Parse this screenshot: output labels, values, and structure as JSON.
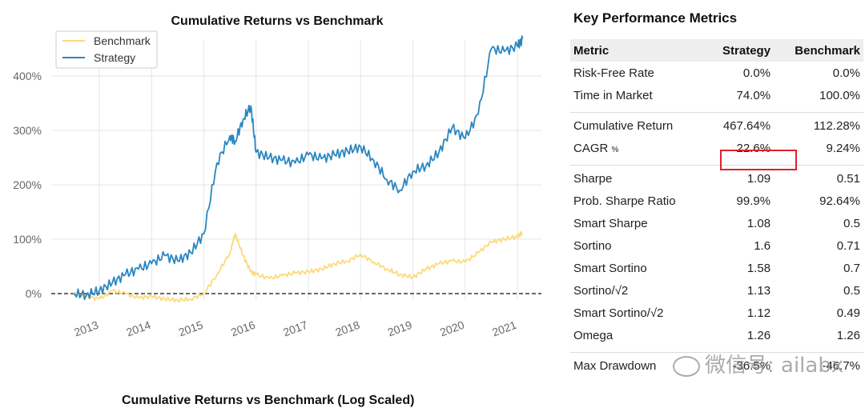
{
  "chart_data": {
    "type": "line",
    "title": "Cumulative Returns vs Benchmark",
    "x": [
      "2012.5",
      "2012.75",
      "2013.0",
      "2013.25",
      "2013.5",
      "2013.75",
      "2014.0",
      "2014.25",
      "2014.5",
      "2014.75",
      "2015.0",
      "2015.25",
      "2015.5",
      "2015.6",
      "2015.75",
      "2015.9",
      "2016.0",
      "2016.25",
      "2016.5",
      "2016.75",
      "2017.0",
      "2017.25",
      "2017.5",
      "2017.75",
      "2018.0",
      "2018.25",
      "2018.5",
      "2018.75",
      "2019.0",
      "2019.25",
      "2019.5",
      "2019.75",
      "2020.0",
      "2020.25",
      "2020.5",
      "2020.75",
      "2021.0",
      "2021.1"
    ],
    "x_ticks": [
      "2013",
      "2014",
      "2015",
      "2016",
      "2017",
      "2018",
      "2019",
      "2020",
      "2021"
    ],
    "y_ticks": [
      "0%",
      "100%",
      "200%",
      "300%",
      "400%"
    ],
    "ylim": [
      -20,
      470
    ],
    "series": [
      {
        "name": "Benchmark",
        "color": "#fdd97a",
        "values": [
          0,
          -5,
          -10,
          5,
          0,
          -8,
          -5,
          -10,
          -12,
          -10,
          0,
          35,
          75,
          110,
          70,
          40,
          35,
          28,
          33,
          38,
          40,
          45,
          55,
          60,
          72,
          58,
          45,
          35,
          30,
          45,
          55,
          60,
          58,
          75,
          95,
          100,
          105,
          112
        ]
      },
      {
        "name": "Strategy",
        "color": "#2a86c0",
        "values": [
          0,
          -2,
          5,
          20,
          35,
          45,
          55,
          70,
          60,
          75,
          110,
          240,
          290,
          280,
          320,
          345,
          260,
          250,
          245,
          240,
          255,
          248,
          255,
          262,
          270,
          245,
          210,
          190,
          225,
          235,
          260,
          305,
          285,
          330,
          450,
          445,
          455,
          468
        ]
      }
    ],
    "legend": "top-left",
    "grid": true,
    "zero_line": true
  },
  "metrics": {
    "title": "Key Performance Metrics",
    "headers": [
      "Metric",
      "Strategy",
      "Benchmark"
    ],
    "groups": [
      [
        [
          "Risk-Free Rate",
          "0.0%",
          "0.0%"
        ],
        [
          "Time in Market",
          "74.0%",
          "100.0%"
        ]
      ],
      [
        [
          "Cumulative Return",
          "467.64%",
          "112.28%"
        ],
        [
          "CAGR",
          "22.6%",
          "9.24%"
        ]
      ],
      [
        [
          "Sharpe",
          "1.09",
          "0.51"
        ],
        [
          "Prob. Sharpe Ratio",
          "99.9%",
          "92.64%"
        ],
        [
          "Smart Sharpe",
          "1.08",
          "0.5"
        ],
        [
          "Sortino",
          "1.6",
          "0.71"
        ],
        [
          "Smart Sortino",
          "1.58",
          "0.7"
        ],
        [
          "Sortino/√2",
          "1.13",
          "0.5"
        ],
        [
          "Smart Sortino/√2",
          "1.12",
          "0.49"
        ],
        [
          "Omega",
          "1.26",
          "1.26"
        ]
      ],
      [
        [
          "Max Drawdown",
          "-36.5%",
          "-46.7%"
        ]
      ]
    ],
    "cagr_symbol": "%",
    "highlight_color": "#e0202a"
  },
  "watermark": "微信号: ailabx",
  "bottom_chart_title": "Cumulative Returns vs Benchmark (Log Scaled)"
}
